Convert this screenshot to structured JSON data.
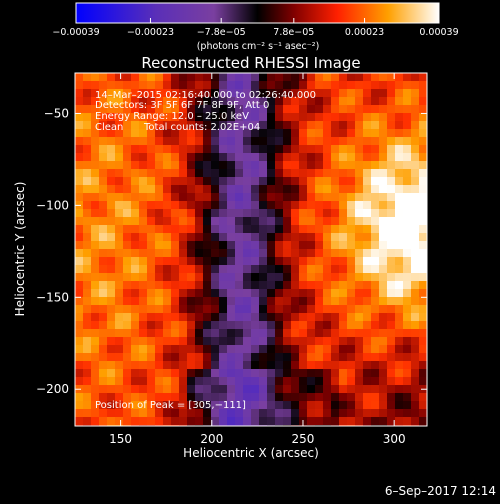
{
  "chart_data": {
    "type": "heatmap",
    "title": "Reconstructed RHESSI Image",
    "xlabel": "Heliocentric X (arcsec)",
    "ylabel": "Heliocentric Y (arcsec)",
    "xlim": [
      125,
      318
    ],
    "ylim": [
      -220,
      -28
    ],
    "x_ticks": [
      150,
      200,
      250,
      300
    ],
    "y_ticks": [
      -50,
      -100,
      -150,
      -200
    ],
    "x_tick_labels": [
      "150",
      "200",
      "250",
      "300"
    ],
    "y_tick_labels": [
      "−50",
      "−100",
      "−150",
      "−200"
    ],
    "colorbar": {
      "range": [
        -0.00039,
        0.00039
      ],
      "tick_values": [
        -0.00039,
        -0.00023,
        -7.8e-05,
        7.8e-05,
        0.00023,
        0.00039
      ],
      "tick_labels": [
        "−0.00039",
        "−0.00023",
        "−7.8e−05",
        "7.8e−05",
        "0.00023",
        "0.00039"
      ],
      "units_label": "(photons cm⁻² s⁻¹ asec⁻²)"
    },
    "annotations": {
      "time": "14–Mar–2015 02:16:40.000 to 02:26:40.000",
      "detectors": "Detectors: 3F 5F 6F 7F 8F 9F, Att 0",
      "energy": "Energy Range: 12.0 – 25.0 keV",
      "method": "Clean",
      "counts": "Total counts: 2.02E+04",
      "peak": "Position of Peak = [305,−111]"
    },
    "peak_position": [
      305,
      -111
    ],
    "colormap": [
      "#0000ff",
      "#5a2fb8",
      "#7a3fa0",
      "#000000",
      "#800000",
      "#ff3000",
      "#ffa000",
      "#ffffff"
    ]
  },
  "footer": {
    "timestamp": "6–Sep–2017 12:14"
  }
}
